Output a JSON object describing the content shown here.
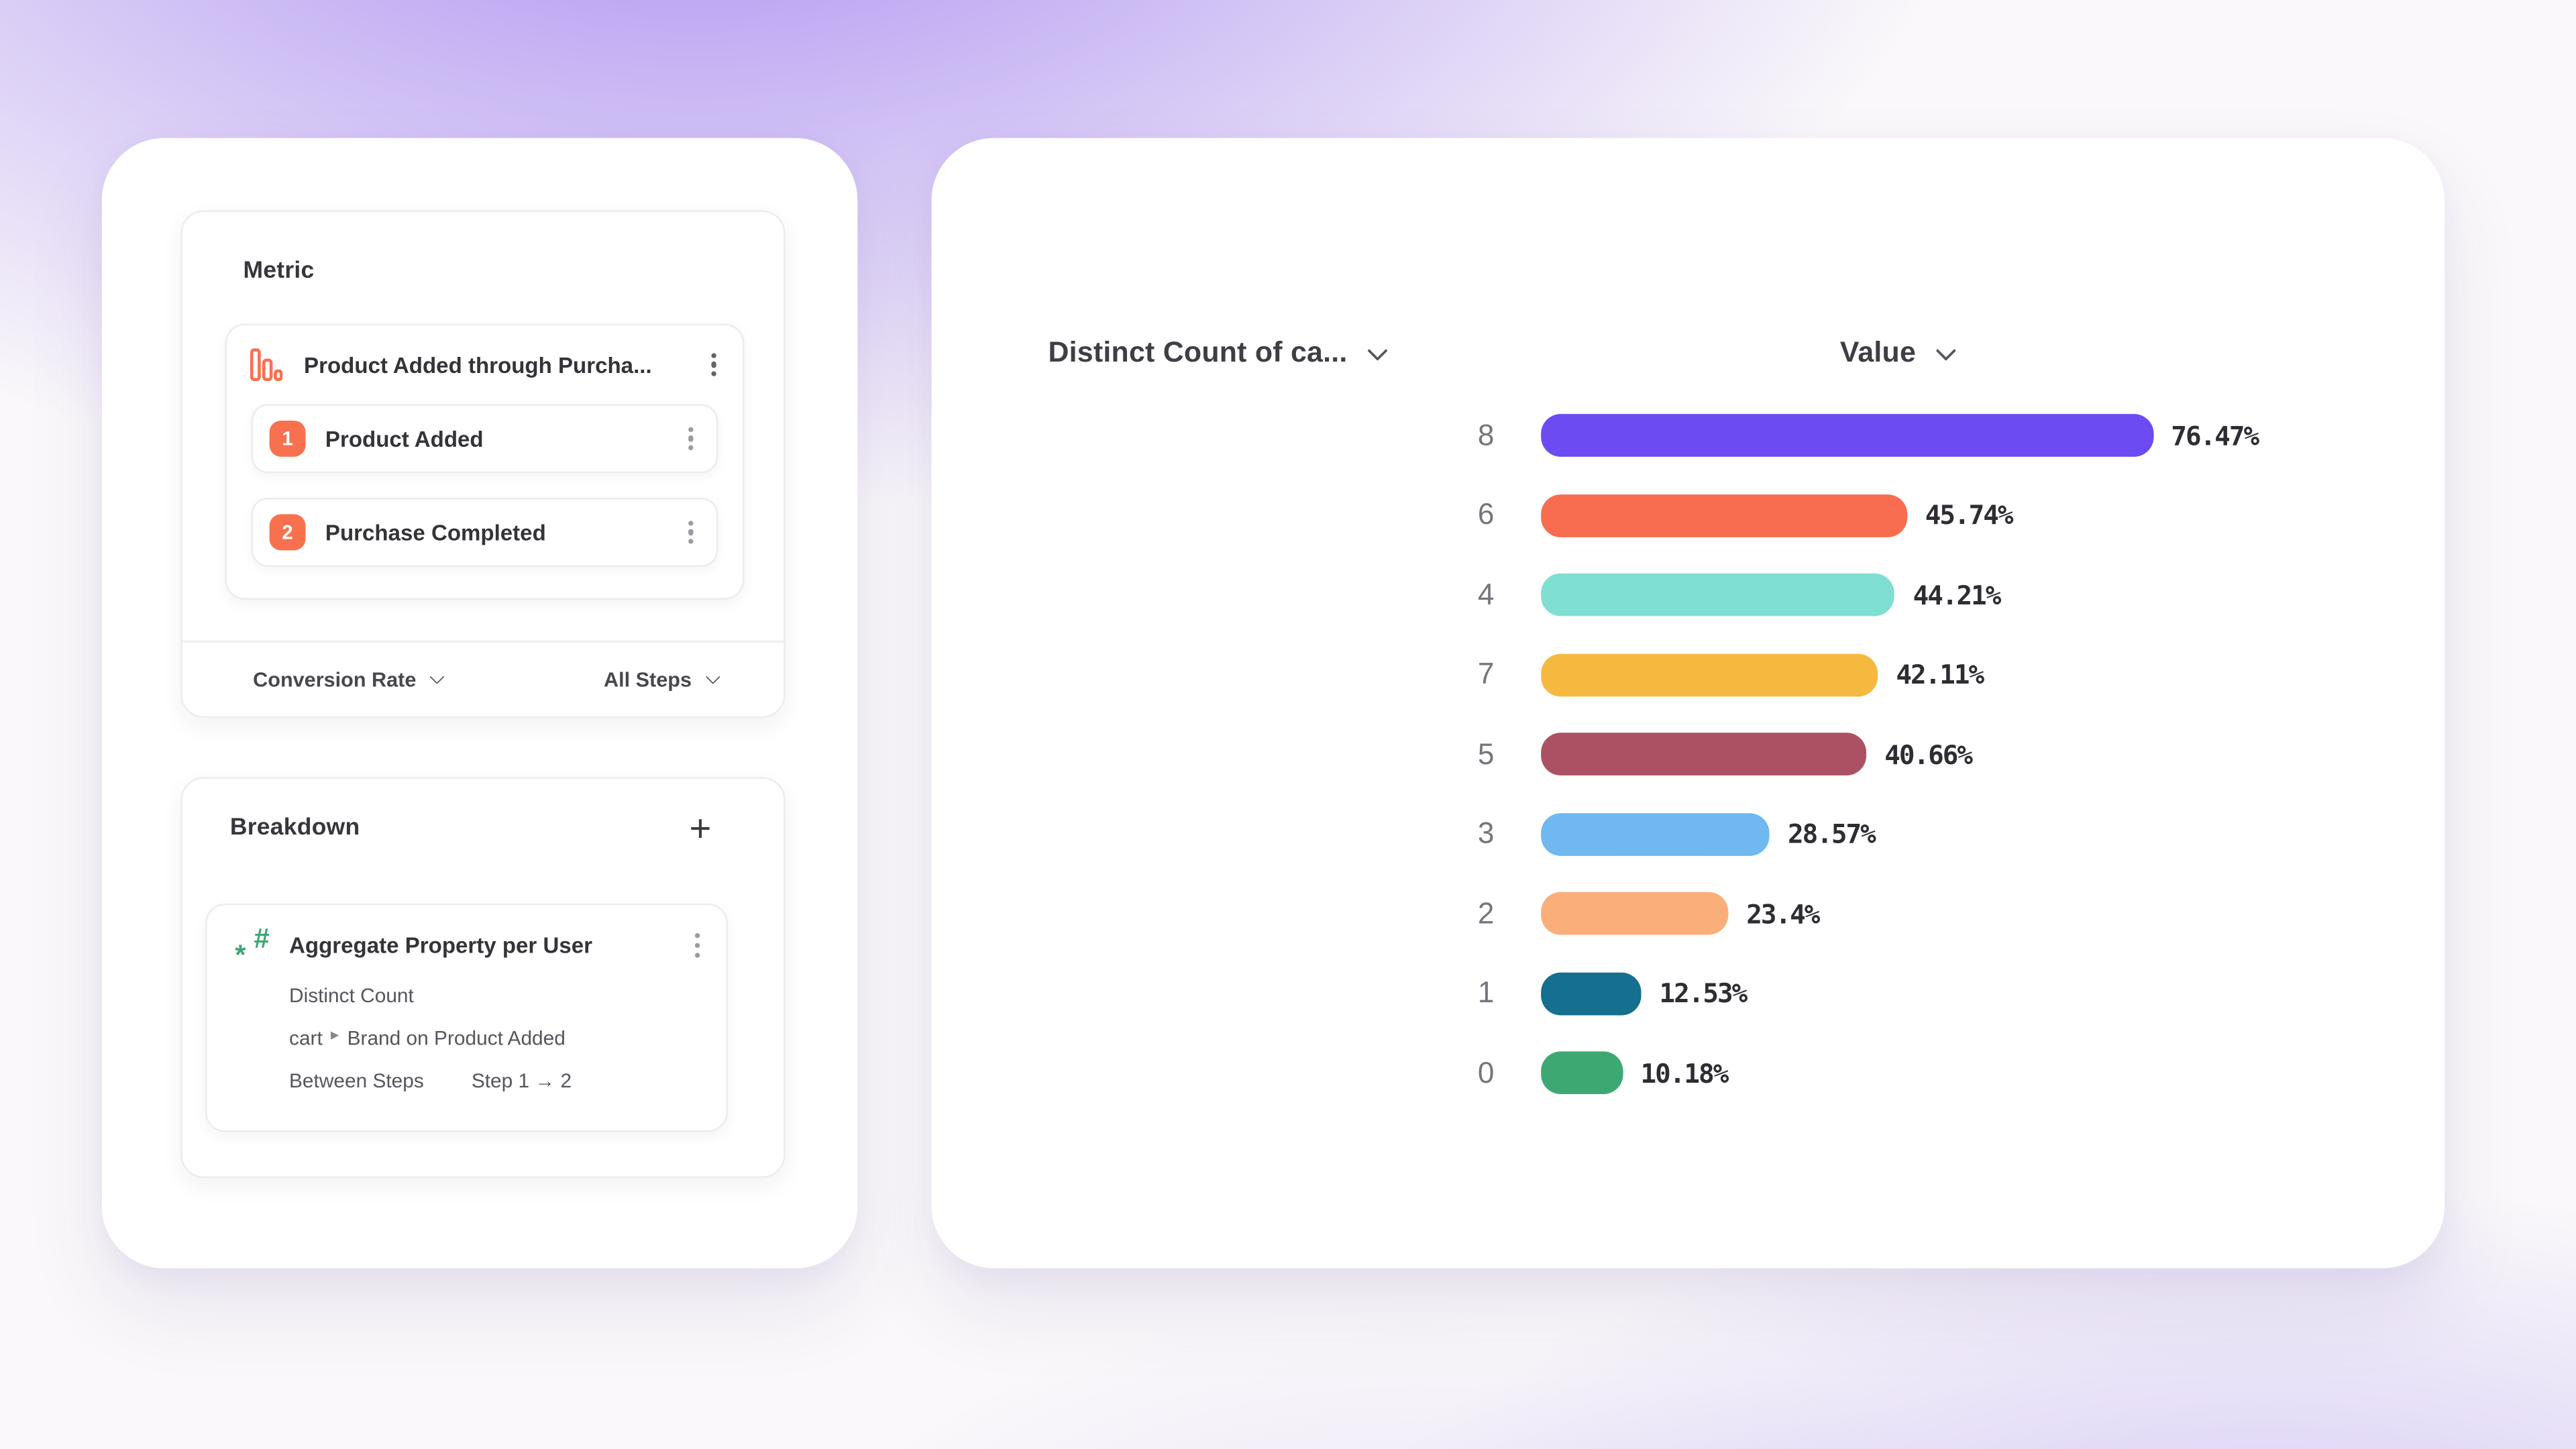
{
  "colors": {
    "accent_orange": "#F8714F",
    "accent_green": "#3BA673",
    "background_base": "#FAF8FA",
    "background_glow": "#A98EF0",
    "panel_bg": "#FFFFFF",
    "text_primary": "#36363C",
    "text_secondary": "#55555C",
    "text_muted": "#75757D"
  },
  "metric_panel": {
    "title": "Metric",
    "funnel": {
      "icon": "funnel-bars-icon",
      "name": "Product Added through Purcha...",
      "steps": [
        {
          "index": "1",
          "label": "Product Added"
        },
        {
          "index": "2",
          "label": "Purchase Completed"
        }
      ]
    },
    "footer": {
      "conversion_label": "Conversion Rate",
      "steps_label": "All Steps"
    }
  },
  "breakdown_panel": {
    "title": "Breakdown",
    "add_icon": "+",
    "item": {
      "icon": "numeric-property-icon",
      "name": "Aggregate Property per User",
      "aggregation": "Distinct Count",
      "property_parent": "cart",
      "property_separator": "▸",
      "property_name": "Brand on Product Added",
      "between_label": "Between Steps",
      "between_value": "Step 1 → 2"
    }
  },
  "chart": {
    "col1_header": "Distinct Count of ca...",
    "col2_header": "Value"
  },
  "chart_data": {
    "type": "bar",
    "orientation": "horizontal",
    "title": "Distinct Count of ca... by Value",
    "xlabel": "Value",
    "ylabel": "Distinct Count of ca...",
    "xlim": [
      0,
      80
    ],
    "grid": false,
    "legend": false,
    "categories": [
      "8",
      "6",
      "4",
      "7",
      "5",
      "3",
      "2",
      "1",
      "0"
    ],
    "values": [
      76.47,
      45.74,
      44.21,
      42.11,
      40.66,
      28.57,
      23.4,
      12.53,
      10.18
    ],
    "value_labels": [
      "76.47%",
      "45.74%",
      "44.21%",
      "42.11%",
      "40.66%",
      "28.57%",
      "23.4%",
      "12.53%",
      "10.18%"
    ],
    "bar_colors": [
      "#6C4CF2",
      "#F86C4F",
      "#7FDFD3",
      "#F6B93F",
      "#AC5163",
      "#6FB8F0",
      "#FAAE79",
      "#156F8E",
      "#3EA873"
    ]
  }
}
